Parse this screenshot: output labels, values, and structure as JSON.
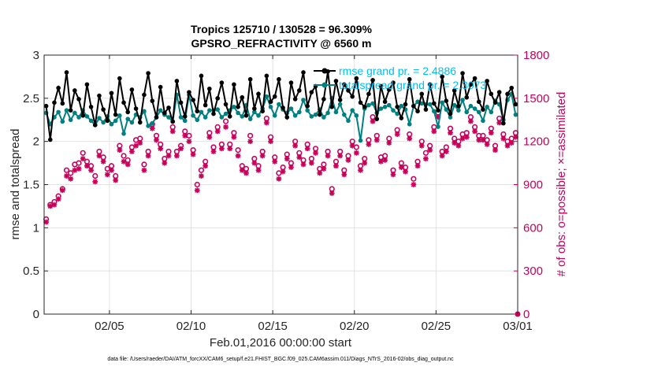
{
  "title_line1": "Tropics 125710 / 130528 = 96.309%",
  "title_line2": "GPSRO_REFRACTIVITY @ 6560 m",
  "xlabel": "Feb.01,2016 00:00:00 start",
  "footer": "data file: /Users/raeder/DAI/ATM_forcXX/CAM6_setup/f.e21.FHIST_BGC.f09_025.CAM6assim.011/Diags_NTrS_2016-02/obs_diag_output.nc",
  "legend": {
    "rmse": "rmse grand pr. = 2.4886",
    "spread": "totalspread grand pr. = 2.3073"
  },
  "colors": {
    "rmse": "#000000",
    "spread": "#008080",
    "obs": "#c8005a",
    "legend_text": "#00bff3"
  },
  "chart_data": {
    "type": "line",
    "title": "Tropics 125710 / 130528 = 96.309%  GPSRO_REFRACTIVITY @ 6560 m",
    "xlabel": "Feb.01,2016 00:00:00 start",
    "ylabel": "rmse and totalspread",
    "ylabel_right": "# of obs: o=possible; ×=assimilated",
    "x_unit": "days since Feb.01,2016 00:00:00",
    "xlim": [
      0,
      29
    ],
    "ylim": [
      0,
      3
    ],
    "ylim_right": [
      0,
      1800
    ],
    "x_ticks": [
      4,
      9,
      14,
      19,
      24,
      29
    ],
    "x_tick_labels": [
      "02/05",
      "02/10",
      "02/15",
      "02/20",
      "02/25",
      "03/01"
    ],
    "y_ticks": [
      0,
      0.5,
      1,
      1.5,
      2,
      2.5,
      3
    ],
    "y_tick_labels": [
      "0",
      "0.5",
      "1",
      "1.5",
      "2",
      "2.5",
      "3"
    ],
    "y_ticks_right": [
      0,
      300,
      600,
      900,
      1200,
      1500,
      1800
    ],
    "y_tick_labels_right": [
      "0",
      "300",
      "600",
      "900",
      "1200",
      "1500",
      "1800"
    ],
    "grid": true,
    "x": [
      0.125,
      0.375,
      0.625,
      0.875,
      1.125,
      1.375,
      1.625,
      1.875,
      2.125,
      2.375,
      2.625,
      2.875,
      3.125,
      3.375,
      3.625,
      3.875,
      4.125,
      4.375,
      4.625,
      4.875,
      5.125,
      5.375,
      5.625,
      5.875,
      6.125,
      6.375,
      6.625,
      6.875,
      7.125,
      7.375,
      7.625,
      7.875,
      8.125,
      8.375,
      8.625,
      8.875,
      9.125,
      9.375,
      9.625,
      9.875,
      10.125,
      10.375,
      10.625,
      10.875,
      11.125,
      11.375,
      11.625,
      11.875,
      12.125,
      12.375,
      12.625,
      12.875,
      13.125,
      13.375,
      13.625,
      13.875,
      14.125,
      14.375,
      14.625,
      14.875,
      15.125,
      15.375,
      15.625,
      15.875,
      16.125,
      16.375,
      16.625,
      16.875,
      17.125,
      17.375,
      17.625,
      17.875,
      18.125,
      18.375,
      18.625,
      18.875,
      19.125,
      19.375,
      19.625,
      19.875,
      20.125,
      20.375,
      20.625,
      20.875,
      21.125,
      21.375,
      21.625,
      21.875,
      22.125,
      22.375,
      22.625,
      22.875,
      23.125,
      23.375,
      23.625,
      23.875,
      24.125,
      24.375,
      24.625,
      24.875,
      25.125,
      25.375,
      25.625,
      25.875,
      26.125,
      26.375,
      26.625,
      26.875,
      27.125,
      27.375,
      27.625,
      27.875,
      28.125,
      28.375,
      28.625,
      28.875
    ],
    "series": [
      {
        "name": "rmse",
        "axis": "left",
        "marker": "filled-circle",
        "values": [
          2.41,
          2.02,
          2.45,
          2.62,
          2.44,
          2.8,
          2.36,
          2.59,
          2.49,
          2.3,
          2.66,
          2.4,
          2.19,
          2.53,
          2.37,
          2.24,
          2.56,
          2.31,
          2.73,
          2.45,
          2.34,
          2.6,
          2.38,
          2.22,
          2.54,
          2.79,
          2.47,
          2.28,
          2.63,
          2.33,
          2.39,
          2.23,
          2.7,
          2.45,
          2.29,
          2.57,
          2.48,
          2.35,
          2.76,
          2.42,
          2.61,
          2.32,
          2.5,
          2.68,
          2.43,
          2.29,
          2.66,
          2.4,
          2.51,
          2.3,
          2.72,
          2.38,
          2.55,
          2.35,
          2.76,
          2.46,
          2.52,
          2.72,
          2.39,
          2.28,
          2.68,
          2.49,
          2.59,
          2.8,
          2.41,
          2.57,
          2.64,
          2.31,
          2.49,
          2.81,
          2.4,
          2.7,
          2.48,
          2.66,
          2.59,
          2.52,
          2.73,
          2.45,
          2.4,
          2.55,
          2.71,
          2.26,
          2.64,
          2.46,
          2.6,
          2.68,
          2.4,
          2.27,
          2.43,
          2.72,
          2.41,
          2.35,
          2.55,
          2.37,
          2.66,
          2.44,
          2.36,
          2.75,
          2.47,
          2.32,
          2.59,
          2.41,
          2.79,
          2.51,
          2.66,
          2.73,
          2.46,
          2.37,
          2.7,
          2.55,
          2.45,
          2.57,
          2.21,
          2.55,
          2.62,
          2.43
        ]
      },
      {
        "name": "totalspread",
        "axis": "left",
        "marker": "filled-circle",
        "values": [
          2.33,
          2.2,
          2.28,
          2.34,
          2.23,
          2.36,
          2.25,
          2.33,
          2.28,
          2.36,
          2.29,
          2.24,
          2.19,
          2.27,
          2.22,
          2.29,
          2.2,
          2.24,
          2.3,
          2.09,
          2.26,
          2.22,
          2.31,
          2.28,
          2.35,
          2.18,
          2.21,
          2.28,
          2.36,
          2.31,
          2.28,
          2.23,
          2.54,
          2.28,
          2.24,
          2.54,
          2.3,
          2.25,
          2.34,
          2.28,
          2.36,
          2.36,
          2.37,
          2.28,
          2.32,
          2.36,
          2.4,
          2.33,
          2.29,
          2.42,
          2.26,
          2.34,
          2.3,
          2.38,
          2.52,
          2.4,
          2.3,
          2.43,
          2.37,
          2.33,
          2.38,
          2.3,
          2.34,
          2.48,
          2.36,
          2.29,
          2.31,
          2.37,
          2.28,
          2.33,
          2.5,
          2.34,
          2.43,
          2.31,
          2.24,
          2.36,
          2.3,
          2.01,
          2.38,
          2.42,
          2.44,
          2.33,
          2.38,
          2.4,
          2.42,
          2.36,
          2.32,
          2.41,
          2.37,
          2.2,
          2.41,
          2.46,
          2.44,
          2.43,
          2.43,
          2.35,
          2.17,
          2.45,
          2.37,
          2.28,
          2.42,
          2.36,
          2.48,
          2.34,
          2.41,
          2.38,
          2.34,
          2.24,
          2.4,
          2.34,
          2.47,
          2.43,
          2.25,
          2.48,
          2.55,
          2.31
        ]
      },
      {
        "name": "obs_possible",
        "axis": "right",
        "marker": "open-circle",
        "values": [
          660,
          760,
          780,
          820,
          870,
          1000,
          980,
          1040,
          1050,
          1120,
          1060,
          1030,
          960,
          1130,
          1090,
          1010,
          1030,
          960,
          1170,
          1100,
          1070,
          1160,
          1210,
          1220,
          1040,
          1130,
          1320,
          1240,
          1180,
          1080,
          1130,
          1300,
          1130,
          1170,
          1270,
          1240,
          1140,
          900,
          1000,
          1060,
          1260,
          1160,
          1300,
          1180,
          1340,
          1180,
          1260,
          1140,
          1030,
          1010,
          1240,
          1080,
          1030,
          1130,
          1360,
          1230,
          1090,
          980,
          1020,
          1110,
          1050,
          1200,
          1120,
          1070,
          1180,
          1080,
          1150,
          1010,
          1040,
          1130,
          870,
          1060,
          1130,
          1000,
          1100,
          1200,
          1160,
          1030,
          1080,
          1210,
          1370,
          1240,
          1090,
          1100,
          1220,
          1000,
          1280,
          1050,
          1020,
          1250,
          940,
          1060,
          1200,
          1120,
          1170,
          1300,
          1400,
          1130,
          1160,
          1290,
          1220,
          1200,
          1250,
          1260,
          1370,
          1300,
          1240,
          1240,
          1210,
          1290,
          1170,
          1360,
          1250,
          1200,
          1220,
          1260
        ]
      },
      {
        "name": "obs_assimilated",
        "axis": "right",
        "marker": "asterisk",
        "values": [
          640,
          750,
          760,
          800,
          860,
          960,
          940,
          1000,
          1010,
          1080,
          1030,
          1000,
          920,
          1100,
          1060,
          970,
          1000,
          930,
          1140,
          1060,
          1040,
          1130,
          1170,
          1190,
          1000,
          1100,
          1290,
          1210,
          1150,
          1050,
          1100,
          1270,
          1100,
          1150,
          1240,
          1200,
          1110,
          860,
          960,
          1030,
          1230,
          1130,
          1270,
          1150,
          1300,
          1150,
          1230,
          1100,
          1000,
          980,
          1200,
          1050,
          1000,
          1100,
          1330,
          1200,
          1060,
          940,
          990,
          1080,
          1020,
          1170,
          1090,
          1040,
          1150,
          1050,
          1120,
          980,
          1010,
          1100,
          840,
          1030,
          1100,
          970,
          1070,
          1170,
          1120,
          1000,
          1050,
          1180,
          1340,
          1210,
          1060,
          1070,
          1190,
          970,
          1250,
          1020,
          990,
          1220,
          900,
          1030,
          1170,
          1080,
          1140,
          1270,
          1370,
          1100,
          1130,
          1260,
          1190,
          1170,
          1220,
          1230,
          1340,
          1270,
          1210,
          1210,
          1180,
          1260,
          1140,
          1330,
          1220,
          1170,
          1190,
          1230
        ]
      }
    ]
  }
}
